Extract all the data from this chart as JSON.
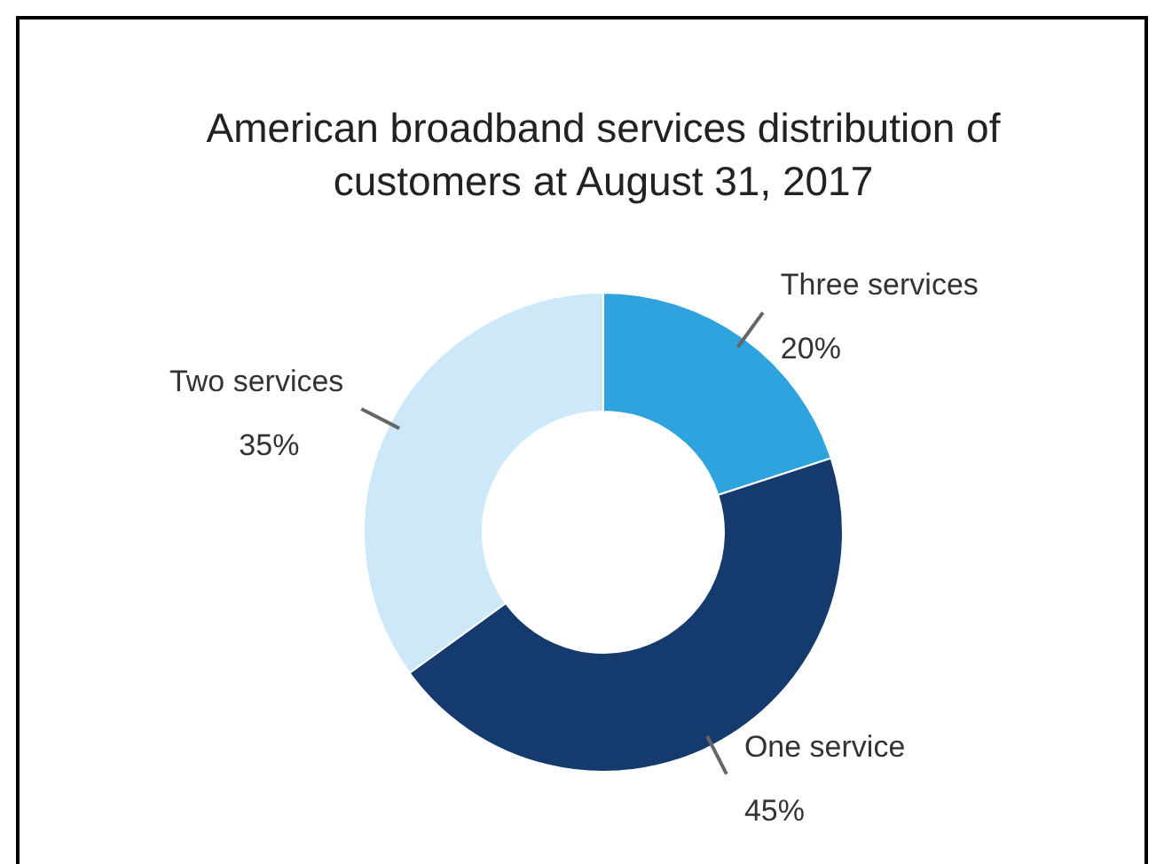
{
  "chart_data": {
    "type": "donut",
    "title": "American broadband services distribution of customers at August 31, 2017",
    "categories": [
      "Three services",
      "One service",
      "Two services"
    ],
    "values": [
      20,
      45,
      35
    ],
    "colors": [
      "#2ea3dd",
      "#143a6e",
      "#cde9f9"
    ],
    "value_labels": [
      "20%",
      "45%",
      "35%"
    ]
  }
}
